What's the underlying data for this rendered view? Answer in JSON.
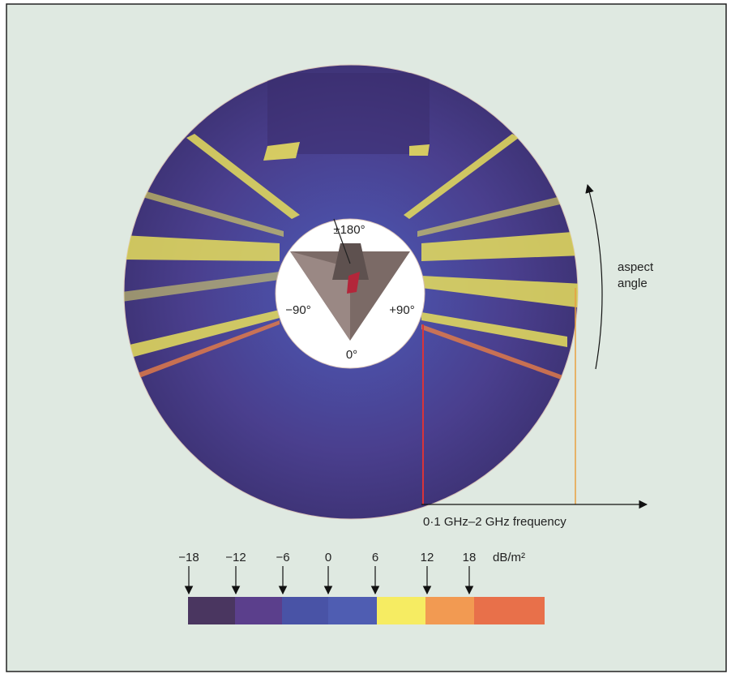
{
  "plot": {
    "angle_labels": {
      "top": "±180°",
      "left": "−90°",
      "right": "+90°",
      "bottom": "0°"
    },
    "aspect_label": [
      "aspect",
      "angle"
    ],
    "frequency_label": "0·1 GHz–2 GHz frequency"
  },
  "colorbar": {
    "ticks": [
      "−18",
      "−12",
      "−6",
      "0",
      "6",
      "12",
      "18"
    ],
    "unit": "dB/m²"
  }
}
